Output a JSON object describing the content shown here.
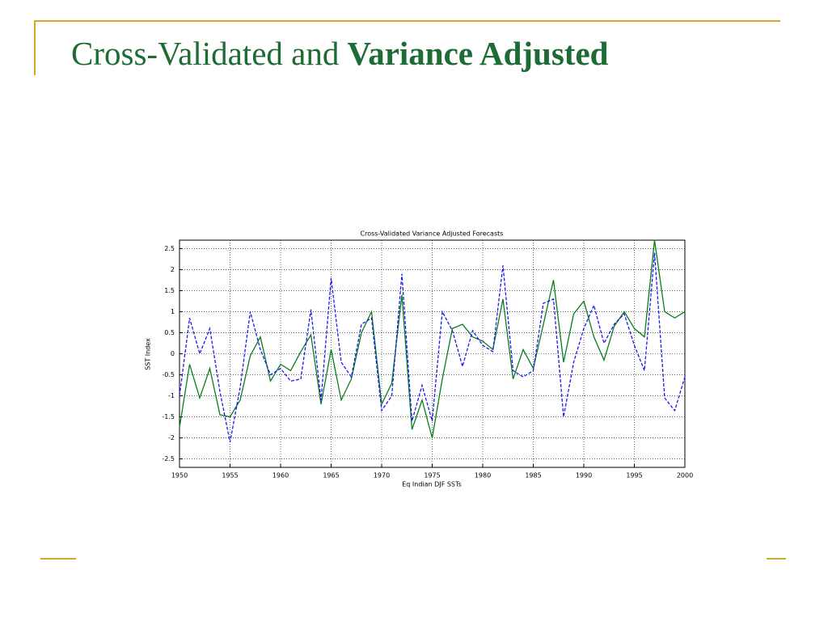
{
  "slide": {
    "title": "Cross-Validated and",
    "title_bold": "Variance Adjusted"
  },
  "chart_data": {
    "type": "line",
    "title": "Cross-Validated Variance Adjusted Forecasts",
    "xlabel": "Eq Indian DJF SSTs",
    "ylabel": "SST Index",
    "x": [
      1950,
      1951,
      1952,
      1953,
      1954,
      1955,
      1956,
      1957,
      1958,
      1959,
      1960,
      1961,
      1962,
      1963,
      1964,
      1965,
      1966,
      1967,
      1968,
      1969,
      1970,
      1971,
      1972,
      1973,
      1974,
      1975,
      1976,
      1977,
      1978,
      1979,
      1980,
      1981,
      1982,
      1983,
      1984,
      1985,
      1986,
      1987,
      1988,
      1989,
      1990,
      1991,
      1992,
      1993,
      1994,
      1995,
      1996,
      1997,
      1998,
      1999,
      2000
    ],
    "series": [
      {
        "color": "#0a7d1e",
        "dash": false,
        "values": [
          -1.75,
          -0.25,
          -1.05,
          -0.35,
          -1.45,
          -1.5,
          -1.1,
          -0.05,
          0.4,
          -0.65,
          -0.25,
          -0.4,
          0.05,
          0.45,
          -1.2,
          0.1,
          -1.1,
          -0.6,
          0.5,
          1.0,
          -1.2,
          -0.7,
          1.4,
          -1.8,
          -1.1,
          -2.0,
          -0.6,
          0.6,
          0.7,
          0.4,
          0.3,
          0.1,
          1.3,
          -0.6,
          0.1,
          -0.35,
          0.7,
          1.75,
          -0.2,
          0.95,
          1.25,
          0.4,
          -0.15,
          0.65,
          1.0,
          0.6,
          0.4,
          2.7,
          1.0,
          0.85,
          1.0
        ]
      },
      {
        "color": "#1a1aee",
        "dash": true,
        "values": [
          -1.0,
          0.85,
          0.0,
          0.6,
          -0.9,
          -2.1,
          -0.8,
          1.0,
          0.1,
          -0.5,
          -0.35,
          -0.65,
          -0.6,
          1.05,
          -1.1,
          1.8,
          -0.2,
          -0.55,
          0.7,
          0.85,
          -1.35,
          -1.0,
          1.9,
          -1.6,
          -0.75,
          -1.6,
          1.0,
          0.55,
          -0.3,
          0.55,
          0.2,
          0.05,
          2.1,
          -0.4,
          -0.55,
          -0.4,
          1.2,
          1.3,
          -1.5,
          -0.2,
          0.6,
          1.15,
          0.25,
          0.7,
          0.95,
          0.2,
          -0.4,
          2.4,
          -1.05,
          -1.35,
          -0.55
        ]
      }
    ],
    "xlim": [
      1950,
      2000
    ],
    "xticks": [
      1950,
      1955,
      1960,
      1965,
      1970,
      1975,
      1980,
      1985,
      1990,
      1995,
      2000
    ],
    "ylim": [
      -2.7,
      2.7
    ],
    "yticks": [
      -2.5,
      -2,
      -1.5,
      -1,
      -0.5,
      0,
      0.5,
      1,
      1.5,
      2,
      2.5
    ],
    "grid": true
  }
}
